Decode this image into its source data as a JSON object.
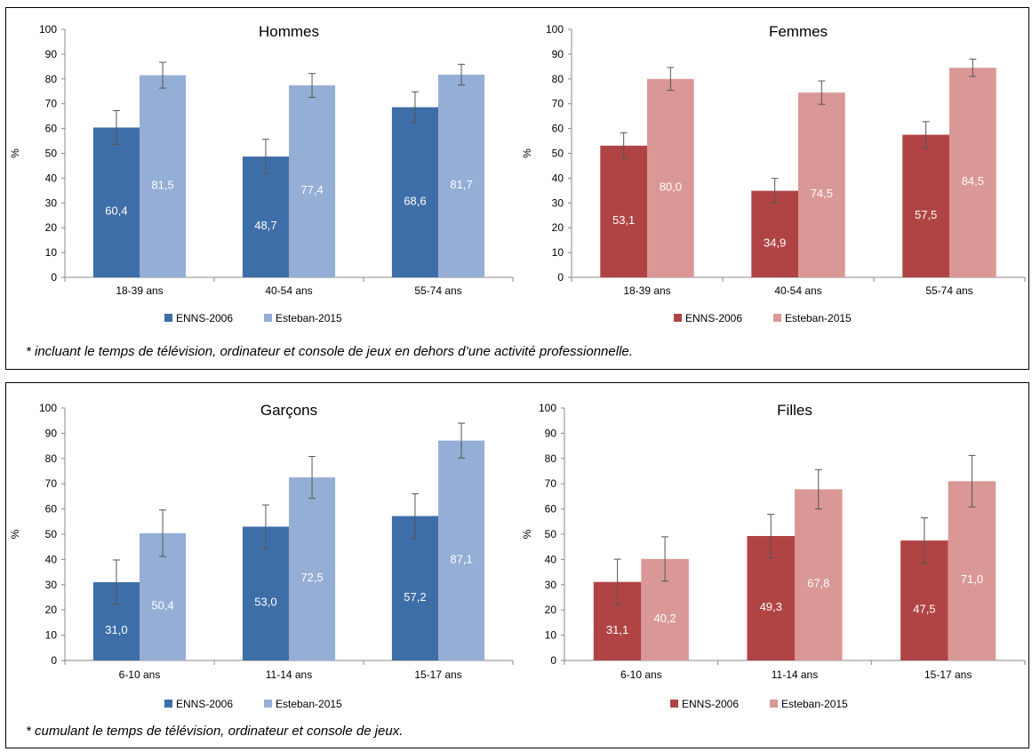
{
  "panels": [
    {
      "footnote": "* incluant le temps de télévision, ordinateur et console de jeux en dehors d’une activité professionnelle."
    },
    {
      "footnote": "* cumulant le temps de télévision, ordinateur et console de jeux."
    }
  ],
  "chart_data": [
    {
      "type": "bar",
      "title": "Hommes",
      "ylabel": "%",
      "ylim": [
        0,
        100
      ],
      "yticks": [
        "0",
        "10",
        "20",
        "30",
        "40",
        "50",
        "60",
        "70",
        "80",
        "90",
        "100"
      ],
      "categories": [
        "18-39 ans",
        "40-54 ans",
        "55-74 ans"
      ],
      "series": [
        {
          "name": "ENNS-2006",
          "values": [
            60.4,
            48.7,
            68.6
          ],
          "labels": [
            "60,4",
            "48,7",
            "68,6"
          ],
          "err": [
            6.8,
            7.0,
            6.2
          ]
        },
        {
          "name": "Esteban-2015",
          "values": [
            81.5,
            77.4,
            81.7
          ],
          "labels": [
            "81,5",
            "77,4",
            "81,7"
          ],
          "err": [
            5.2,
            4.8,
            4.2
          ]
        }
      ],
      "colors": [
        "#3e6ea7",
        "#94aed6"
      ],
      "grid": false,
      "legend": "bottom"
    },
    {
      "type": "bar",
      "title": "Femmes",
      "ylabel": "%",
      "ylim": [
        0,
        100
      ],
      "yticks": [
        "0",
        "10",
        "20",
        "30",
        "40",
        "50",
        "60",
        "70",
        "80",
        "90",
        "100"
      ],
      "categories": [
        "18-39 ans",
        "40-54 ans",
        "55-74 ans"
      ],
      "series": [
        {
          "name": "ENNS-2006",
          "values": [
            53.1,
            34.9,
            57.5
          ],
          "labels": [
            "53,1",
            "34,9",
            "57,5"
          ],
          "err": [
            5.2,
            5.0,
            5.3
          ]
        },
        {
          "name": "Esteban-2015",
          "values": [
            80.0,
            74.5,
            84.5
          ],
          "labels": [
            "80,0",
            "74,5",
            "84,5"
          ],
          "err": [
            4.6,
            4.7,
            3.5
          ]
        }
      ],
      "colors": [
        "#b04444",
        "#d99896"
      ],
      "grid": false,
      "legend": "bottom"
    },
    {
      "type": "bar",
      "title": "Garçons",
      "ylabel": "%",
      "ylim": [
        0,
        100
      ],
      "yticks": [
        "0",
        "10",
        "20",
        "30",
        "40",
        "50",
        "60",
        "70",
        "80",
        "90",
        "100"
      ],
      "categories": [
        "6-10 ans",
        "11-14 ans",
        "15-17 ans"
      ],
      "series": [
        {
          "name": "ENNS-2006",
          "values": [
            31.0,
            53.0,
            57.2
          ],
          "labels": [
            "31,0",
            "53,0",
            "57,2"
          ],
          "err": [
            8.8,
            8.6,
            8.8
          ]
        },
        {
          "name": "Esteban-2015",
          "values": [
            50.4,
            72.5,
            87.1
          ],
          "labels": [
            "50,4",
            "72,5",
            "87,1"
          ],
          "err": [
            9.2,
            8.3,
            6.9
          ]
        }
      ],
      "colors": [
        "#3e6ea7",
        "#94aed6"
      ],
      "grid": false,
      "legend": "bottom"
    },
    {
      "type": "bar",
      "title": "Filles",
      "ylabel": "%",
      "ylim": [
        0,
        100
      ],
      "yticks": [
        "0",
        "10",
        "20",
        "30",
        "40",
        "50",
        "60",
        "70",
        "80",
        "90",
        "100"
      ],
      "categories": [
        "6-10 ans",
        "11-14 ans",
        "15-17 ans"
      ],
      "series": [
        {
          "name": "ENNS-2006",
          "values": [
            31.1,
            49.3,
            47.5
          ],
          "labels": [
            "31,1",
            "49,3",
            "47,5"
          ],
          "err": [
            9.0,
            8.6,
            9.0
          ]
        },
        {
          "name": "Esteban-2015",
          "values": [
            40.2,
            67.8,
            71.0
          ],
          "labels": [
            "40,2",
            "67,8",
            "71,0"
          ],
          "err": [
            8.8,
            7.8,
            10.2
          ]
        }
      ],
      "colors": [
        "#b04444",
        "#d99896"
      ],
      "grid": false,
      "legend": "bottom"
    }
  ]
}
